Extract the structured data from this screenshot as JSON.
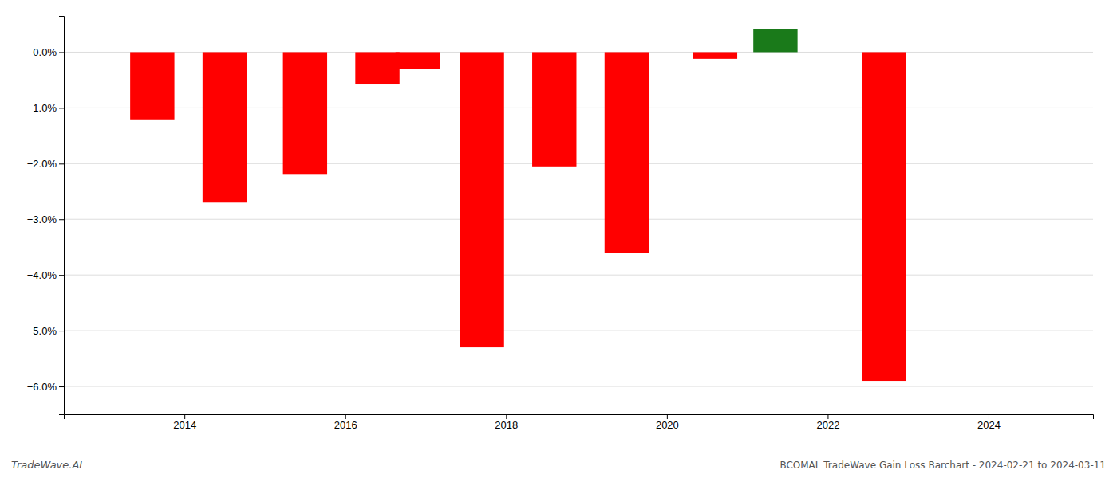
{
  "chart_data": {
    "type": "bar",
    "title": "BCOMAL TradeWave Gain Loss Barchart - 2024-02-21 to 2024-03-11",
    "annotations": [
      "TradeWave.AI"
    ],
    "x": [
      2013.6,
      2014.5,
      2015.5,
      2016.4,
      2016.9,
      2017.7,
      2018.6,
      2019.5,
      2020.6,
      2021.35,
      2022.7
    ],
    "values": [
      -1.22,
      -2.7,
      -2.2,
      -0.58,
      -0.3,
      -5.3,
      -2.05,
      -3.6,
      -0.12,
      0.42,
      -5.9
    ],
    "colors": [
      "#ff0000",
      "#ff0000",
      "#ff0000",
      "#ff0000",
      "#ff0000",
      "#ff0000",
      "#ff0000",
      "#ff0000",
      "#ff0000",
      "#1a7a1a",
      "#ff0000"
    ],
    "xlim": [
      2012.5,
      2025.3
    ],
    "xticks": [
      2014,
      2016,
      2018,
      2020,
      2022,
      2024
    ],
    "ylim": [
      -6.5,
      0.65
    ],
    "yticks": [
      {
        "value": 0.0,
        "label": "0.0%"
      },
      {
        "value": -1.0,
        "label": "−1.0%"
      },
      {
        "value": -2.0,
        "label": "−2.0%"
      },
      {
        "value": -3.0,
        "label": "−3.0%"
      },
      {
        "value": -4.0,
        "label": "−4.0%"
      },
      {
        "value": -5.0,
        "label": "−5.0%"
      },
      {
        "value": -6.0,
        "label": "−6.0%"
      }
    ],
    "grid": true
  }
}
